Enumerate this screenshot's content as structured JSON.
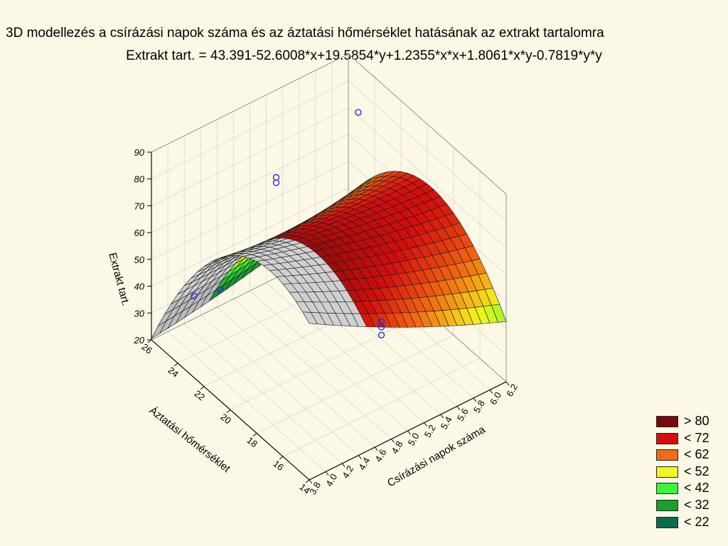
{
  "chart_data": {
    "type": "surface3d",
    "title": "3D modellezés a  csírázási napok száma és az áztatási hőmérséklet hatásának az extrakt tartalomra",
    "subtitle": "Extrakt tart. = 43.391-52.6008*x+19.5854*y+1.2355*x*x+1.8061*x*y-0.7819*y*y",
    "equation": {
      "intercept": 43.391,
      "x": -52.6008,
      "y": 19.5854,
      "xx": 1.2355,
      "xy": 1.8061,
      "yy": -0.7819
    },
    "x_axis": {
      "label": "Csírázási napok száma",
      "range": [
        3.8,
        6.2
      ],
      "ticks": [
        "3.8",
        "4.0",
        "4.2",
        "4.4",
        "4.6",
        "4.8",
        "5.0",
        "5.2",
        "5.4",
        "5.6",
        "5.8",
        "6.0",
        "6.2"
      ]
    },
    "y_axis": {
      "label": "Áztatási hőmérséklet",
      "range": [
        14,
        26
      ],
      "ticks": [
        "14",
        "16",
        "18",
        "20",
        "22",
        "24",
        "26"
      ]
    },
    "z_axis": {
      "label": "Extrakt tart.",
      "range": [
        20,
        90
      ],
      "ticks": [
        "20",
        "30",
        "40",
        "50",
        "60",
        "70",
        "80",
        "90"
      ]
    },
    "observations": [
      {
        "x": 4.0,
        "y": 24,
        "z": 42
      },
      {
        "x": 4.0,
        "y": 22,
        "z": 53
      },
      {
        "x": 5.0,
        "y": 24,
        "z": 69
      },
      {
        "x": 5.0,
        "y": 24,
        "z": 71
      },
      {
        "x": 6.0,
        "y": 24,
        "z": 80
      },
      {
        "x": 5.0,
        "y": 16,
        "z": 52
      },
      {
        "x": 5.0,
        "y": 16,
        "z": 50
      },
      {
        "x": 5.0,
        "y": 16,
        "z": 47
      }
    ],
    "legend": [
      {
        "label": "> 80",
        "color": "#7a0a0a"
      },
      {
        "label": "< 72",
        "color": "#d40e0e"
      },
      {
        "label": "< 62",
        "color": "#f26a12"
      },
      {
        "label": "< 52",
        "color": "#f4f41e"
      },
      {
        "label": "< 42",
        "color": "#3df43a"
      },
      {
        "label": "< 32",
        "color": "#18a02a"
      },
      {
        "label": "< 22",
        "color": "#0b6a50"
      }
    ],
    "grid": true,
    "legend_placement": "bottom-right"
  }
}
